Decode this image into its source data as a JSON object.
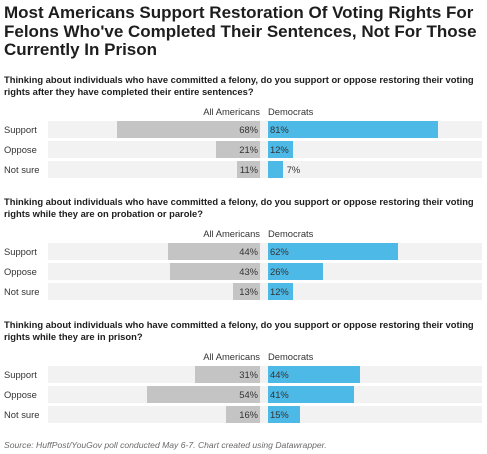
{
  "title": "Most Americans Support Restoration Of Voting Rights For Felons Who've Completed Their Sentences, Not For Those Currently In Prison",
  "source": "Source: HuffPost/YouGov poll conducted May 6-7. Chart created using Datawrapper.",
  "colors": {
    "all_americans": "#c4c4c4",
    "democrats": "#4db9e6",
    "row_background": "#f2f2f2"
  },
  "chart_data": [
    {
      "type": "bar",
      "title": "Thinking about individuals who have committed a felony, do you support or oppose restoring their voting rights after they have completed their entire sentences?",
      "categories": [
        "Support",
        "Oppose",
        "Not sure"
      ],
      "series": [
        {
          "name": "All Americans",
          "values": [
            68,
            21,
            11
          ],
          "labels": [
            "68%",
            "21%",
            "11%"
          ]
        },
        {
          "name": "Democrats",
          "values": [
            81,
            12,
            7
          ],
          "labels": [
            "81%",
            "12%",
            "7%"
          ]
        }
      ]
    },
    {
      "type": "bar",
      "title": "Thinking about individuals who have committed a felony, do you support or oppose restoring their voting rights while they are on probation or parole?",
      "categories": [
        "Support",
        "Oppose",
        "Not sure"
      ],
      "series": [
        {
          "name": "All Americans",
          "values": [
            44,
            43,
            13
          ],
          "labels": [
            "44%",
            "43%",
            "13%"
          ]
        },
        {
          "name": "Democrats",
          "values": [
            62,
            26,
            12
          ],
          "labels": [
            "62%",
            "26%",
            "12%"
          ]
        }
      ]
    },
    {
      "type": "bar",
      "title": "Thinking about individuals who have committed a felony, do you support or oppose restoring their voting rights while they are in prison?",
      "categories": [
        "Support",
        "Oppose",
        "Not sure"
      ],
      "series": [
        {
          "name": "All Americans",
          "values": [
            31,
            54,
            16
          ],
          "labels": [
            "31%",
            "54%",
            "16%"
          ]
        },
        {
          "name": "Democrats",
          "values": [
            44,
            41,
            15
          ],
          "labels": [
            "44%",
            "41%",
            "15%"
          ]
        }
      ]
    }
  ]
}
